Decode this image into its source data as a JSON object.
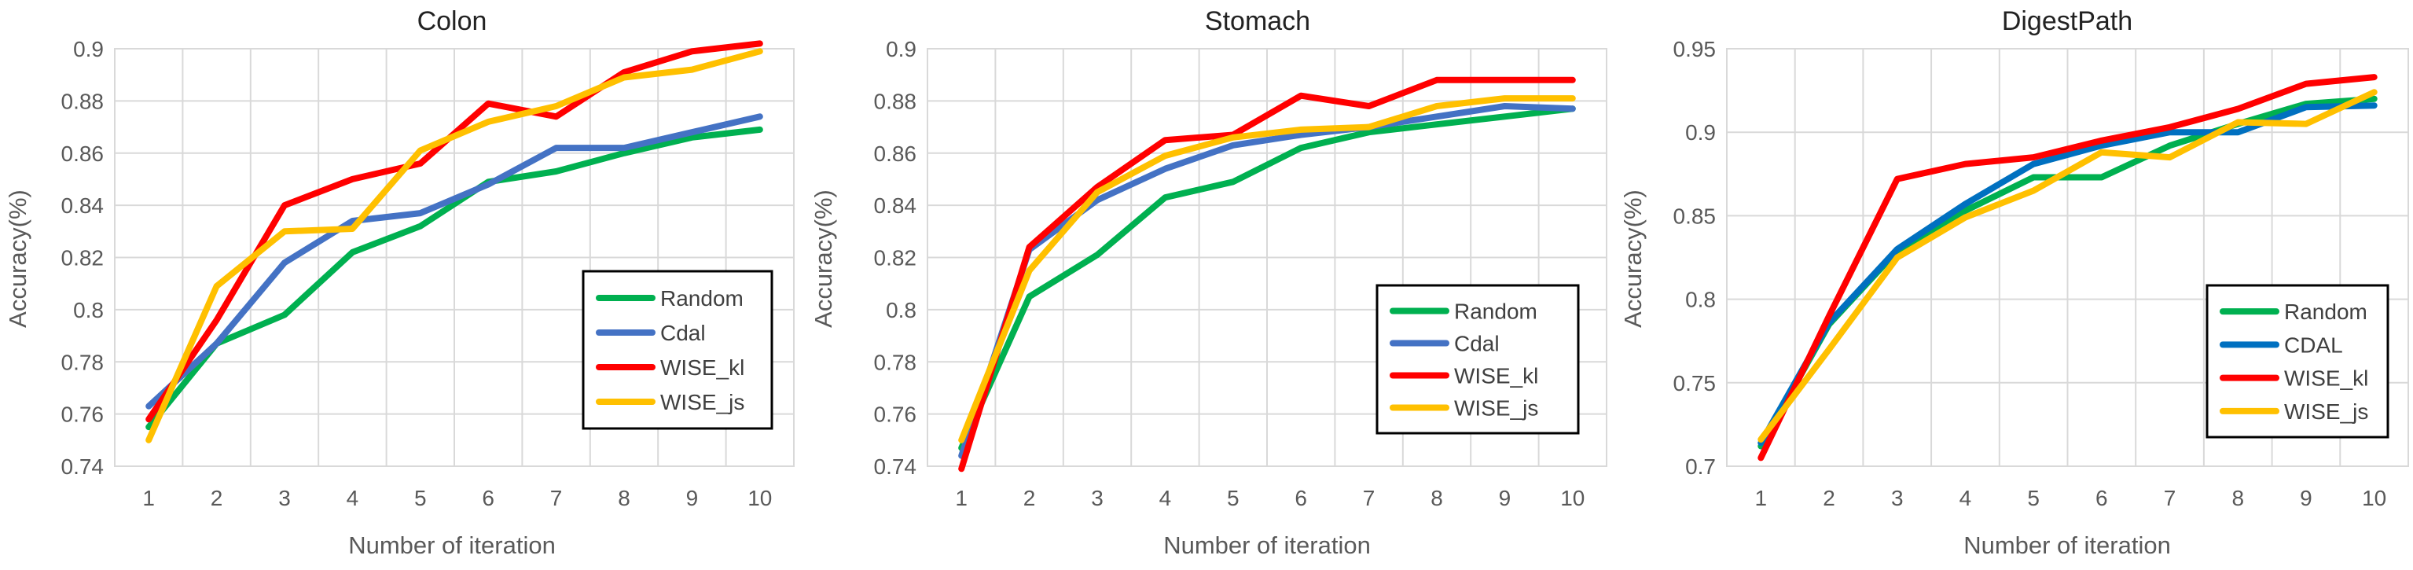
{
  "chart_data": [
    {
      "type": "line",
      "title": "Colon",
      "xlabel": "Number of iteration",
      "ylabel": "Accuracy(%)",
      "x": [
        1,
        2,
        3,
        4,
        5,
        6,
        7,
        8,
        9,
        10
      ],
      "ylim": [
        0.74,
        0.9
      ],
      "yticks": [
        "0.74",
        "0.76",
        "0.78",
        "0.8",
        "0.82",
        "0.84",
        "0.86",
        "0.88",
        "0.9"
      ],
      "grid": true,
      "legend_position": "bottom-right",
      "series": [
        {
          "name": "Random",
          "color": "#00b050",
          "values": [
            0.755,
            0.787,
            0.798,
            0.822,
            0.832,
            0.849,
            0.853,
            0.86,
            0.866,
            0.869
          ]
        },
        {
          "name": "Cdal",
          "color": "#4472c4",
          "values": [
            0.763,
            0.787,
            0.818,
            0.834,
            0.837,
            0.848,
            0.862,
            0.862,
            0.868,
            0.874
          ]
        },
        {
          "name": "WISE_kl",
          "color": "#ff0000",
          "values": [
            0.758,
            0.796,
            0.84,
            0.85,
            0.856,
            0.879,
            0.874,
            0.891,
            0.899,
            0.902
          ]
        },
        {
          "name": "WISE_js",
          "color": "#ffc000",
          "values": [
            0.75,
            0.809,
            0.83,
            0.831,
            0.861,
            0.872,
            0.878,
            0.889,
            0.892,
            0.899
          ]
        }
      ]
    },
    {
      "type": "line",
      "title": "Stomach",
      "xlabel": "Number of iteration",
      "ylabel": "Accuracy(%)",
      "x": [
        1,
        2,
        3,
        4,
        5,
        6,
        7,
        8,
        9,
        10
      ],
      "ylim": [
        0.74,
        0.9
      ],
      "yticks": [
        "0.74",
        "0.76",
        "0.78",
        "0.8",
        "0.82",
        "0.84",
        "0.86",
        "0.88",
        "0.9"
      ],
      "grid": true,
      "legend_position": "bottom-right",
      "series": [
        {
          "name": "Random",
          "color": "#00b050",
          "values": [
            0.747,
            0.805,
            0.821,
            0.843,
            0.849,
            0.862,
            0.868,
            0.871,
            0.874,
            0.877
          ]
        },
        {
          "name": "Cdal",
          "color": "#4472c4",
          "values": [
            0.744,
            0.823,
            0.842,
            0.854,
            0.863,
            0.867,
            0.87,
            0.874,
            0.878,
            0.877
          ]
        },
        {
          "name": "WISE_kl",
          "color": "#ff0000",
          "values": [
            0.739,
            0.824,
            0.847,
            0.865,
            0.867,
            0.882,
            0.878,
            0.888,
            0.888,
            0.888
          ]
        },
        {
          "name": "WISE_js",
          "color": "#ffc000",
          "values": [
            0.75,
            0.815,
            0.845,
            0.859,
            0.866,
            0.869,
            0.87,
            0.878,
            0.881,
            0.881
          ]
        }
      ]
    },
    {
      "type": "line",
      "title": "DigestPath",
      "xlabel": "Number of iteration",
      "ylabel": "Accuracy(%)",
      "x": [
        1,
        2,
        3,
        4,
        5,
        6,
        7,
        8,
        9,
        10
      ],
      "ylim": [
        0.7,
        0.95
      ],
      "yticks": [
        "0.7",
        "0.75",
        "0.8",
        "0.85",
        "0.9",
        "0.95"
      ],
      "grid": true,
      "legend_position": "bottom-right",
      "series": [
        {
          "name": "Random",
          "color": "#00b050",
          "values": [
            0.712,
            0.785,
            0.829,
            0.853,
            0.873,
            0.873,
            0.892,
            0.905,
            0.917,
            0.92
          ]
        },
        {
          "name": "CDAL",
          "color": "#0070c0",
          "values": [
            0.714,
            0.786,
            0.83,
            0.857,
            0.881,
            0.892,
            0.9,
            0.9,
            0.915,
            0.916
          ]
        },
        {
          "name": "WISE_kl",
          "color": "#ff0000",
          "values": [
            0.705,
            0.79,
            0.872,
            0.881,
            0.885,
            0.895,
            0.903,
            0.914,
            0.929,
            0.933
          ]
        },
        {
          "name": "WISE_js",
          "color": "#ffc000",
          "values": [
            0.716,
            0.77,
            0.825,
            0.849,
            0.865,
            0.888,
            0.885,
            0.906,
            0.905,
            0.924
          ]
        }
      ]
    }
  ]
}
